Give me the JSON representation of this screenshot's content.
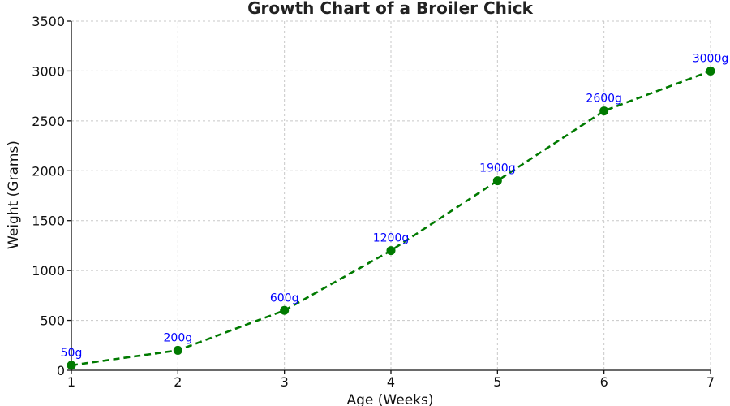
{
  "chart_data": {
    "type": "line",
    "title": "Growth Chart of a Broiler Chick",
    "xlabel": "Age (Weeks)",
    "ylabel": "Weight (Grams)",
    "x": [
      1,
      2,
      3,
      4,
      5,
      6,
      7
    ],
    "series": [
      {
        "values": [
          50,
          200,
          600,
          1200,
          1900,
          2600,
          3000
        ],
        "labels": [
          "50g",
          "200g",
          "600g",
          "1200g",
          "1900g",
          "2600g",
          "3000g"
        ],
        "color": "#007a00",
        "line_style": "dashed",
        "marker": "circle"
      }
    ],
    "xlim": [
      1,
      7
    ],
    "ylim": [
      0,
      3500
    ],
    "xticks": [
      "1",
      "2",
      "3",
      "4",
      "5",
      "6",
      "7"
    ],
    "yticks": [
      "0",
      "500",
      "1000",
      "1500",
      "2000",
      "2500",
      "3000",
      "3500"
    ],
    "grid": true,
    "label_color": "#0000ff"
  }
}
